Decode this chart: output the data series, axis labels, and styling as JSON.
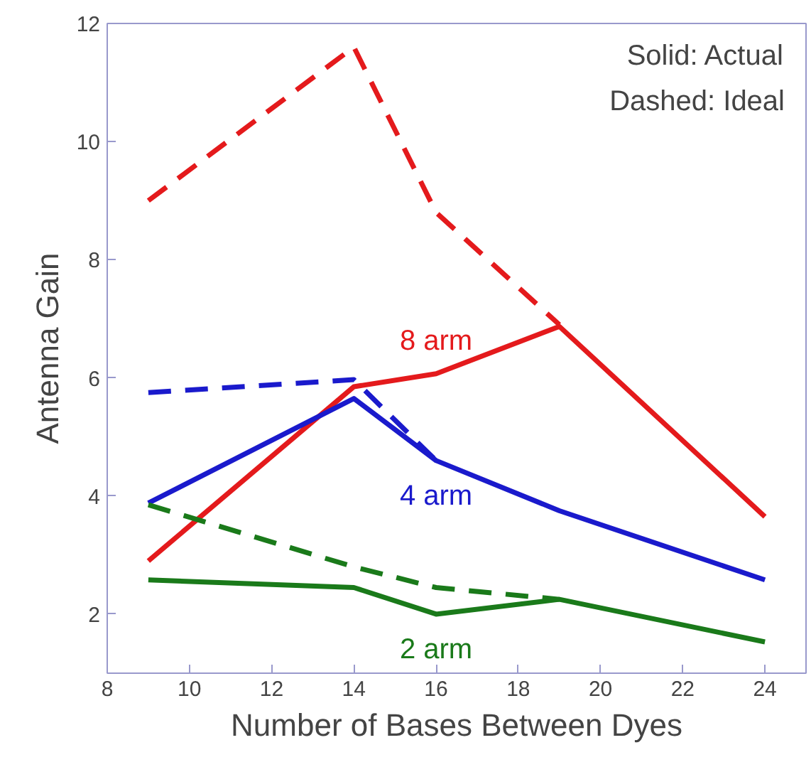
{
  "chart_data": {
    "type": "line",
    "xlabel": "Number of Bases Between Dyes",
    "ylabel": "Antenna Gain",
    "xlim": [
      8,
      25
    ],
    "ylim": [
      1,
      12
    ],
    "xticks": [
      8,
      10,
      12,
      14,
      16,
      18,
      20,
      22,
      24
    ],
    "yticks": [
      2,
      4,
      6,
      8,
      10,
      12
    ],
    "grid": false,
    "marker": "none",
    "annotations": [
      "Solid: Actual",
      "Dashed: Ideal"
    ],
    "series": [
      {
        "name": "8 arm",
        "color": "#e41a1c",
        "line_style": "solid",
        "x": [
          9,
          14,
          16,
          19,
          24
        ],
        "values": [
          2.9,
          5.85,
          6.07,
          6.87,
          3.65
        ]
      },
      {
        "color": "#e41a1c",
        "line_style": "dashed",
        "x": [
          9,
          14,
          16,
          19
        ],
        "values": [
          9.0,
          11.6,
          8.8,
          6.9
        ]
      },
      {
        "name": "4 arm",
        "color": "#1a1acc",
        "line_style": "solid",
        "x": [
          9,
          14,
          16,
          19,
          24
        ],
        "values": [
          3.88,
          5.65,
          4.6,
          3.75,
          2.58
        ]
      },
      {
        "color": "#1a1acc",
        "line_style": "dashed",
        "x": [
          9,
          14,
          16
        ],
        "values": [
          5.75,
          5.97,
          4.6
        ]
      },
      {
        "name": "2 arm",
        "color": "#1a7a1a",
        "line_style": "solid",
        "x": [
          9,
          14,
          16,
          19,
          24
        ],
        "values": [
          2.58,
          2.45,
          2.0,
          2.25,
          1.53
        ]
      },
      {
        "color": "#1a7a1a",
        "line_style": "dashed",
        "x": [
          9,
          14,
          16,
          19
        ],
        "values": [
          3.85,
          2.8,
          2.45,
          2.25
        ]
      }
    ]
  }
}
